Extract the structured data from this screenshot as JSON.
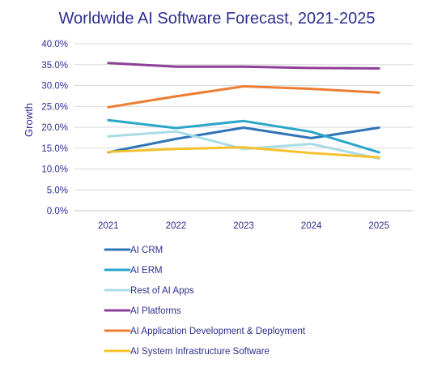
{
  "chart_data": {
    "type": "line",
    "title": "Worldwide AI Software Forecast, 2021-2025",
    "xlabel": "",
    "ylabel": "Growth",
    "categories": [
      "2021",
      "2022",
      "2023",
      "2024",
      "2025"
    ],
    "ylim": [
      0,
      40
    ],
    "yticks": [
      "0.0%",
      "5.0%",
      "10.0%",
      "15.0%",
      "20.0%",
      "25.0%",
      "30.0%",
      "35.0%",
      "40.0%"
    ],
    "grid": true,
    "legend_position": "bottom",
    "series": [
      {
        "name": "AI CRM",
        "color": "#2e75b6",
        "values": [
          14.0,
          17.2,
          19.9,
          17.4,
          19.9
        ]
      },
      {
        "name": "AI ERM",
        "color": "#2aa6c9",
        "values": [
          21.7,
          19.8,
          21.5,
          18.9,
          14.0
        ]
      },
      {
        "name": "Rest of AI Apps",
        "color": "#a9dce6",
        "values": [
          17.8,
          19.0,
          14.8,
          16.0,
          12.5
        ]
      },
      {
        "name": "AI Platforms",
        "color": "#8e3f98",
        "values": [
          35.4,
          34.5,
          34.5,
          34.2,
          34.1
        ]
      },
      {
        "name": "AI Application Development & Deployment",
        "color": "#ed7d31",
        "values": [
          24.8,
          27.4,
          29.8,
          29.2,
          28.3
        ]
      },
      {
        "name": "AI System Infrastructure Software",
        "color": "#f5c12e",
        "values": [
          14.1,
          14.8,
          15.2,
          13.8,
          12.8
        ]
      }
    ]
  }
}
